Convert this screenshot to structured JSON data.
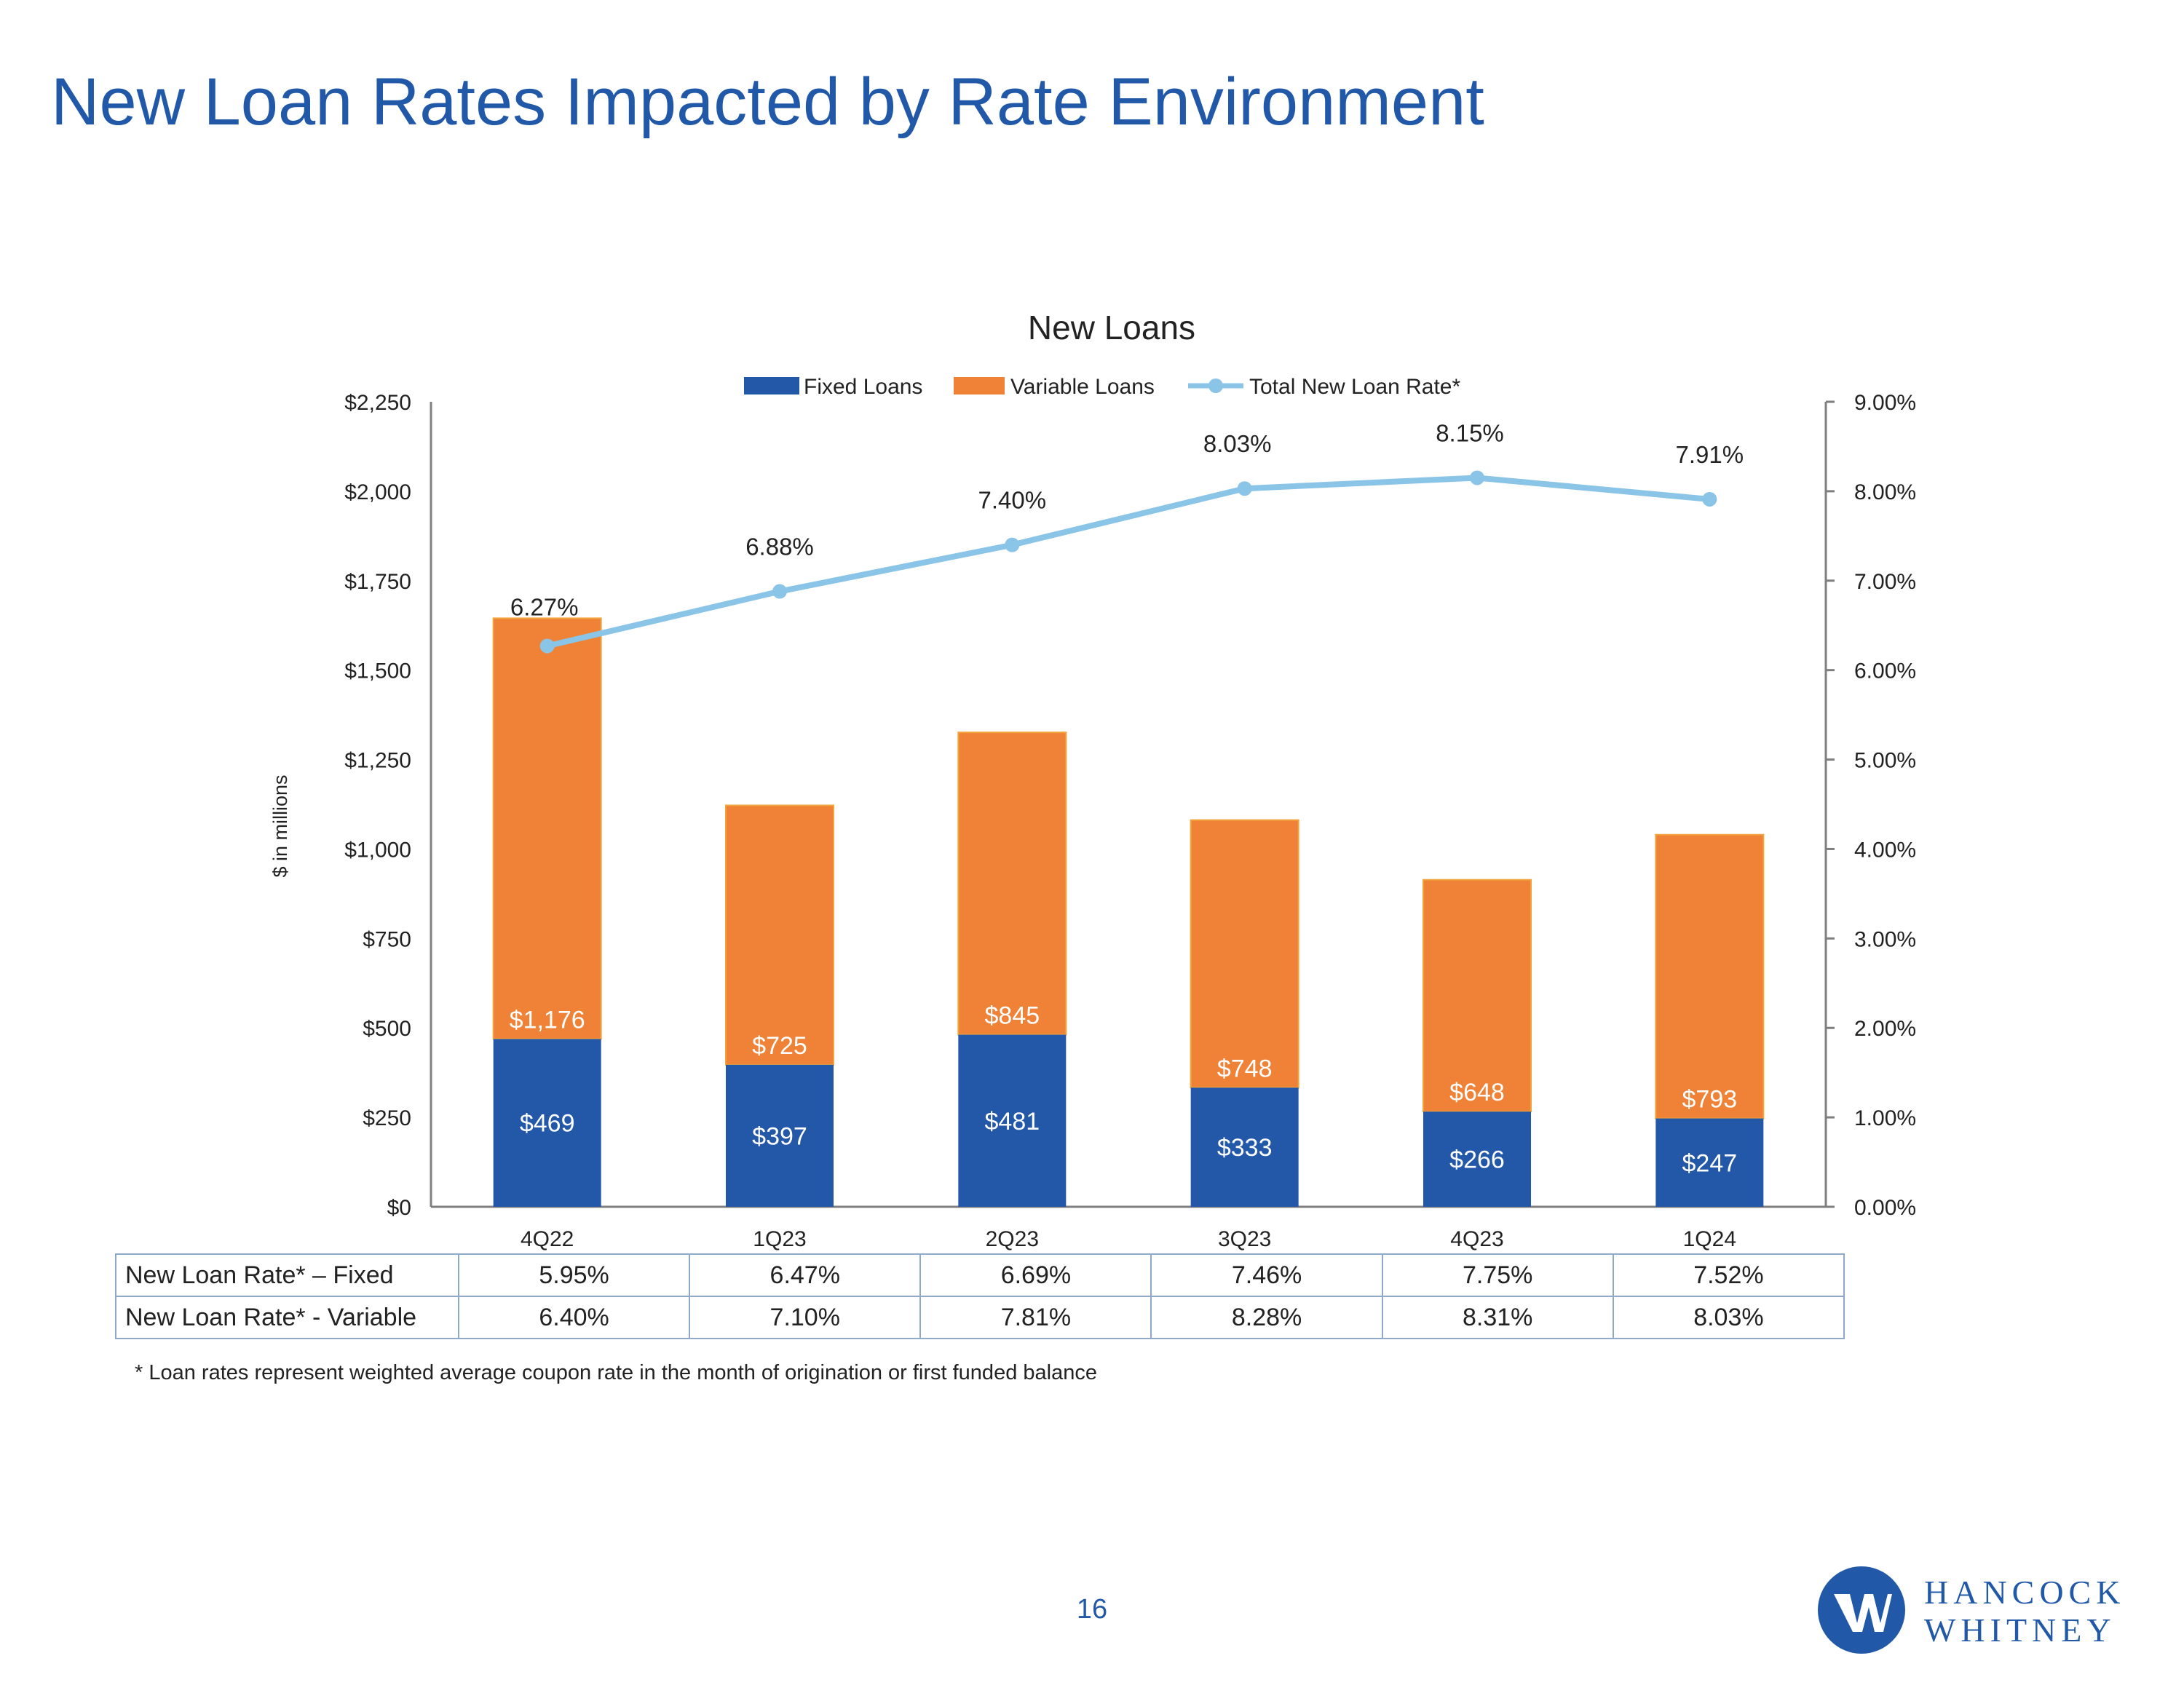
{
  "slide": {
    "title": "New Loan Rates Impacted by Rate Environment",
    "page_number": "16",
    "footnote": "* Loan rates represent weighted average coupon rate in the month of origination or first funded balance"
  },
  "logo": {
    "line1": "HANCOCK",
    "line2": "WHITNEY"
  },
  "colors": {
    "title": "#2159a8",
    "fixed": "#2358a8",
    "variable": "#ef8236",
    "line": "#8ac4e6",
    "axis": "#7f7f7f"
  },
  "chart_data": {
    "type": "bar",
    "stacked": true,
    "title": "New Loans",
    "ylabel": "$ in millions",
    "ylim": [
      0,
      2250
    ],
    "y_ticks": [
      "$0",
      "$250",
      "$500",
      "$750",
      "$1,000",
      "$1,250",
      "$1,500",
      "$1,750",
      "$2,000",
      "$2,250"
    ],
    "y2lim": [
      0,
      9
    ],
    "y2_ticks": [
      "0.00%",
      "1.00%",
      "2.00%",
      "3.00%",
      "4.00%",
      "5.00%",
      "6.00%",
      "7.00%",
      "8.00%",
      "9.00%"
    ],
    "categories": [
      "4Q22",
      "1Q23",
      "2Q23",
      "3Q23",
      "4Q23",
      "1Q24"
    ],
    "series": [
      {
        "name": "Fixed Loans",
        "type": "bar",
        "values": [
          469,
          397,
          481,
          333,
          266,
          247
        ],
        "labels": [
          "$469",
          "$397",
          "$481",
          "$333",
          "$266",
          "$247"
        ]
      },
      {
        "name": "Variable Loans",
        "type": "bar",
        "values": [
          1176,
          725,
          845,
          748,
          648,
          793
        ],
        "labels": [
          "$1,176",
          "$725",
          "$845",
          "$748",
          "$648",
          "$793"
        ]
      },
      {
        "name": "Total New Loan Rate*",
        "type": "line",
        "axis": "right",
        "values": [
          6.27,
          6.88,
          7.4,
          8.03,
          8.15,
          7.91
        ],
        "labels": [
          "6.27%",
          "6.88%",
          "7.40%",
          "8.03%",
          "8.15%",
          "7.91%"
        ]
      }
    ],
    "legend": [
      "Fixed Loans",
      "Variable Loans",
      "Total New Loan Rate*"
    ],
    "legend_position": "top"
  },
  "table": {
    "rows": [
      {
        "label": "New Loan Rate* – Fixed",
        "values": [
          "5.95%",
          "6.47%",
          "6.69%",
          "7.46%",
          "7.75%",
          "7.52%"
        ]
      },
      {
        "label": "New Loan Rate* - Variable",
        "values": [
          "6.40%",
          "7.10%",
          "7.81%",
          "8.28%",
          "8.31%",
          "8.03%"
        ]
      }
    ]
  }
}
